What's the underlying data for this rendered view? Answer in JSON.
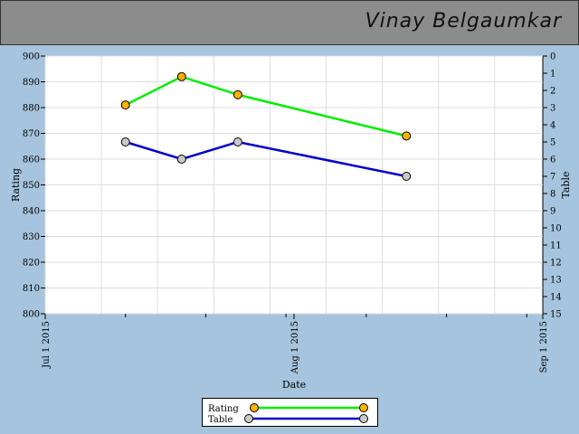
{
  "header": {
    "user_name": "Vinay Belgaumkar"
  },
  "chart_data": {
    "type": "line",
    "xlabel": "Date",
    "ylabel": "Rating",
    "y2label": "Table",
    "x_ticks": [
      "Jul 1 2015",
      "Aug 1 2015",
      "Sep 1 2015"
    ],
    "xlim": [
      "2015-07-01",
      "2015-09-01"
    ],
    "ylim": [
      800,
      900
    ],
    "y_ticks": [
      800,
      810,
      820,
      830,
      840,
      850,
      860,
      870,
      880,
      890,
      900
    ],
    "y2lim": [
      0,
      15
    ],
    "y2_inverted": true,
    "y2_ticks": [
      0,
      1,
      2,
      3,
      4,
      5,
      6,
      7,
      8,
      9,
      10,
      11,
      12,
      13,
      14,
      15
    ],
    "grid": true,
    "legend_position": "bottom-center",
    "series": [
      {
        "name": "Rating",
        "axis": "left",
        "color": "#00ee00",
        "marker_color": "#ffb000",
        "x": [
          "2015-07-11",
          "2015-07-18",
          "2015-07-25",
          "2015-08-15"
        ],
        "values": [
          881,
          892,
          885,
          869
        ]
      },
      {
        "name": "Table",
        "axis": "right",
        "color": "#0000cc",
        "marker_color": "#c8c8c8",
        "x": [
          "2015-07-11",
          "2015-07-18",
          "2015-07-25",
          "2015-08-15"
        ],
        "values": [
          5,
          6,
          5,
          7
        ]
      }
    ]
  }
}
